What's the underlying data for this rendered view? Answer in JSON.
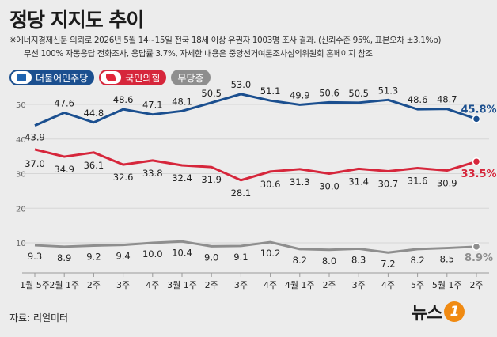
{
  "header": {
    "title": "정당 지지도 추이",
    "note_line1": "※에너지경제신문 의뢰로 2026년 5월 14~15일 전국 18세 이상 유권자 1003명 조사 결과. (신뢰수준 95%, 표본오차 ±3.1%p)",
    "note_line2": "무선 100% 자동응답 전화조사, 응답률 3.7%, 자세한 내용은 중앙선거여론조사심의위원회 홈페이지 참조"
  },
  "colors": {
    "dp": "#1b4f8f",
    "ppp": "#d6263b",
    "none": "#8e8e8e"
  },
  "chart_data": {
    "type": "line",
    "categories": [
      "1월 5주",
      "2월 1주",
      "2주",
      "3주",
      "4주",
      "3월 1주",
      "2주",
      "3주",
      "4주",
      "4월 1주",
      "2주",
      "3주",
      "4주",
      "5주",
      "5월 1주",
      "2주"
    ],
    "ylim": [
      0,
      55
    ],
    "yticks": [
      10,
      20,
      30,
      40,
      50
    ],
    "grid": true,
    "legend_position": "top-left",
    "series": [
      {
        "name": "더불어민주당",
        "key": "dp",
        "values": [
          43.9,
          47.6,
          44.8,
          48.6,
          47.1,
          48.1,
          50.5,
          53.0,
          51.1,
          49.9,
          50.6,
          50.5,
          51.3,
          48.6,
          48.7,
          45.8
        ]
      },
      {
        "name": "국민의힘",
        "key": "ppp",
        "values": [
          37.0,
          34.9,
          36.1,
          32.6,
          33.8,
          32.4,
          31.9,
          28.1,
          30.6,
          31.3,
          30.0,
          31.4,
          30.7,
          31.6,
          30.9,
          33.5
        ]
      },
      {
        "name": "무당층",
        "key": "none",
        "values": [
          9.3,
          8.9,
          9.2,
          9.4,
          10.0,
          10.4,
          9.0,
          9.1,
          10.2,
          8.2,
          8.0,
          8.3,
          7.2,
          8.2,
          8.5,
          8.9
        ]
      }
    ]
  },
  "footer": {
    "source": "자료: 리얼미터",
    "logo_text": "뉴스",
    "logo_badge": "1"
  }
}
